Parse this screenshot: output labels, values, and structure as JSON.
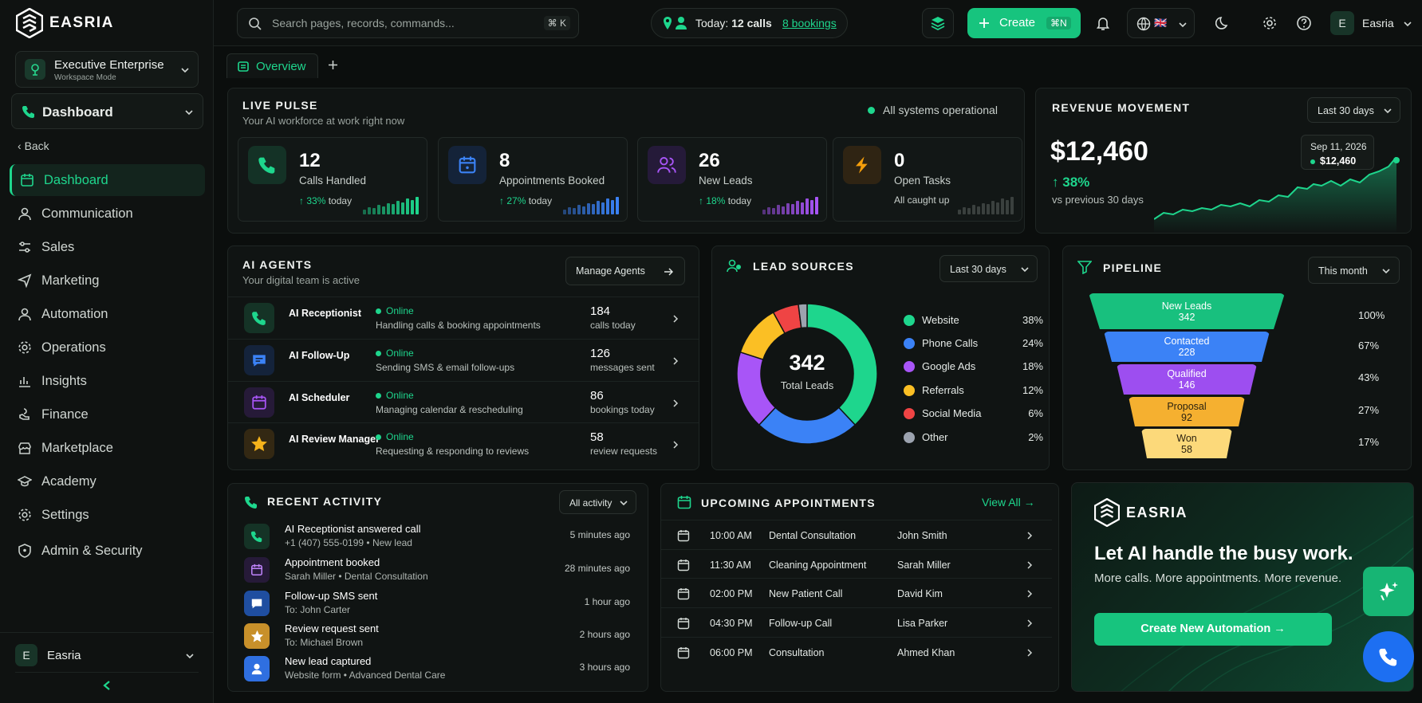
{
  "brand": {
    "name": "EASRIA"
  },
  "workspace": {
    "name": "Executive Enterprise",
    "mode": "Workspace Mode"
  },
  "section_select": {
    "label": "Dashboard"
  },
  "back_label": "Back",
  "nav": [
    {
      "label": "Dashboard",
      "icon": "calendar-icon"
    },
    {
      "label": "Communication",
      "icon": "user-icon"
    },
    {
      "label": "Sales",
      "icon": "sliders-icon"
    },
    {
      "label": "Marketing",
      "icon": "send-icon"
    },
    {
      "label": "Automation",
      "icon": "user-icon"
    },
    {
      "label": "Operations",
      "icon": "gear-icon"
    },
    {
      "label": "Insights",
      "icon": "bar-chart-icon"
    },
    {
      "label": "Finance",
      "icon": "hand-icon"
    },
    {
      "label": "Marketplace",
      "icon": "shop-icon"
    },
    {
      "label": "Academy",
      "icon": "graduation-icon"
    },
    {
      "label": "Settings",
      "icon": "gear-icon"
    },
    {
      "label": "Admin & Security",
      "icon": "shield-icon"
    }
  ],
  "sidebar_user": {
    "initial": "E",
    "name": "Easria"
  },
  "topbar": {
    "search_placeholder": "Search pages, records, commands...",
    "search_shortcut": "⌘ K",
    "today_prefix": "Today:",
    "today_calls": "12 calls",
    "today_bookings": "8 bookings",
    "create_label": "Create",
    "create_shortcut": "⌘N",
    "lang_flag": "🇬🇧",
    "user_initial": "E",
    "user_name": "Easria"
  },
  "tabs": [
    {
      "label": "Overview"
    }
  ],
  "live_pulse": {
    "title": "LIVE PULSE",
    "subtitle": "Your AI workforce at work right now",
    "status": "All systems operational",
    "stats": [
      {
        "value": "12",
        "label": "Calls Handled",
        "change": "33%",
        "suffix": "today",
        "color": "#1ed68d"
      },
      {
        "value": "8",
        "label": "Appointments Booked",
        "change": "27%",
        "suffix": "today",
        "color": "#3b82f6"
      },
      {
        "value": "26",
        "label": "New Leads",
        "change": "18%",
        "suffix": "today",
        "color": "#a855f7"
      },
      {
        "value": "0",
        "label": "Open Tasks",
        "note": "All caught up",
        "color": "#f59e0b"
      }
    ]
  },
  "revenue": {
    "title": "REVENUE MOVEMENT",
    "range": "Last 30 days",
    "amount": "$12,460",
    "change": "38%",
    "compare": "vs previous 30 days",
    "tooltip_date": "Sep 11, 2026",
    "tooltip_value": "$12,460"
  },
  "ai_agents": {
    "title": "AI AGENTS",
    "subtitle": "Your digital team is active",
    "manage_label": "Manage Agents",
    "agents": [
      {
        "name": "AI Receptionist",
        "status": "Online",
        "desc": "Handling calls & booking appointments",
        "count": "184",
        "unit": "calls today",
        "color": "#1ed68d",
        "bg": "#153326"
      },
      {
        "name": "AI Follow-Up",
        "status": "Online",
        "desc": "Sending SMS & email follow-ups",
        "count": "126",
        "unit": "messages sent",
        "color": "#3b82f6",
        "bg": "#14233b"
      },
      {
        "name": "AI Scheduler",
        "status": "Online",
        "desc": "Managing calendar & rescheduling",
        "count": "86",
        "unit": "bookings today",
        "color": "#a855f7",
        "bg": "#261a38"
      },
      {
        "name": "AI Review Manager",
        "status": "Online",
        "desc": "Requesting & responding to reviews",
        "count": "58",
        "unit": "review requests",
        "color": "#f5b31b",
        "bg": "#332813"
      }
    ]
  },
  "lead_sources": {
    "title": "LEAD SOURCES",
    "range": "Last 30 days",
    "total": "342",
    "total_label": "Total Leads",
    "items": [
      {
        "name": "Website",
        "pct": "38%",
        "value": 38,
        "color": "#1ed68d"
      },
      {
        "name": "Phone Calls",
        "pct": "24%",
        "value": 24,
        "color": "#3b82f6"
      },
      {
        "name": "Google Ads",
        "pct": "18%",
        "value": 18,
        "color": "#a855f7"
      },
      {
        "name": "Referrals",
        "pct": "12%",
        "value": 12,
        "color": "#fbbf24"
      },
      {
        "name": "Social Media",
        "pct": "6%",
        "value": 6,
        "color": "#ef4444"
      },
      {
        "name": "Other",
        "pct": "2%",
        "value": 2,
        "color": "#9ca3af"
      }
    ]
  },
  "pipeline": {
    "title": "PIPELINE",
    "range": "This month",
    "stages": [
      {
        "name": "New Leads",
        "count": "342",
        "pct": "100%",
        "color": "#18c07e"
      },
      {
        "name": "Contacted",
        "count": "228",
        "pct": "67%",
        "color": "#3b82f6"
      },
      {
        "name": "Qualified",
        "count": "146",
        "pct": "43%",
        "color": "#9d4ef0"
      },
      {
        "name": "Proposal",
        "count": "92",
        "pct": "27%",
        "color": "#f5b030"
      },
      {
        "name": "Won",
        "count": "58",
        "pct": "17%",
        "color": "#fcd97a"
      }
    ]
  },
  "recent_activity": {
    "title": "RECENT ACTIVITY",
    "filter": "All activity",
    "items": [
      {
        "title": "AI Receptionist answered call",
        "sub": "+1 (407) 555-0199 • New lead",
        "time": "5 minutes ago",
        "color": "#1ed68d",
        "bg": "#153326"
      },
      {
        "title": "Appointment booked",
        "sub": "Sarah Miller • Dental Consultation",
        "time": "28 minutes ago",
        "color": "#a855f7",
        "bg": "#261a38"
      },
      {
        "title": "Follow-up SMS sent",
        "sub": "To: John Carter",
        "time": "1 hour ago",
        "color": "#3b82f6",
        "bg": "#1f4ea0"
      },
      {
        "title": "Review request sent",
        "sub": "To: Michael Brown",
        "time": "2 hours ago",
        "color": "#f5b31b",
        "bg": "#c8902a"
      },
      {
        "title": "New lead captured",
        "sub": "Website form • Advanced Dental Care",
        "time": "3 hours ago",
        "color": "#3b82f6",
        "bg": "#2f6fe0"
      }
    ]
  },
  "appointments": {
    "title": "UPCOMING APPOINTMENTS",
    "view_all": "View All",
    "items": [
      {
        "time": "10:00 AM",
        "name": "Dental Consultation",
        "person": "John Smith"
      },
      {
        "time": "11:30 AM",
        "name": "Cleaning Appointment",
        "person": "Sarah Miller"
      },
      {
        "time": "02:00 PM",
        "name": "New Patient Call",
        "person": "David Kim"
      },
      {
        "time": "04:30 PM",
        "name": "Follow-up Call",
        "person": "Lisa Parker"
      },
      {
        "time": "06:00 PM",
        "name": "Consultation",
        "person": "Ahmed Khan"
      }
    ]
  },
  "promo": {
    "brand": "EASRIA",
    "headline": "Let AI handle the busy work.",
    "sub": "More calls. More appointments. More revenue.",
    "cta": "Create New Automation"
  }
}
